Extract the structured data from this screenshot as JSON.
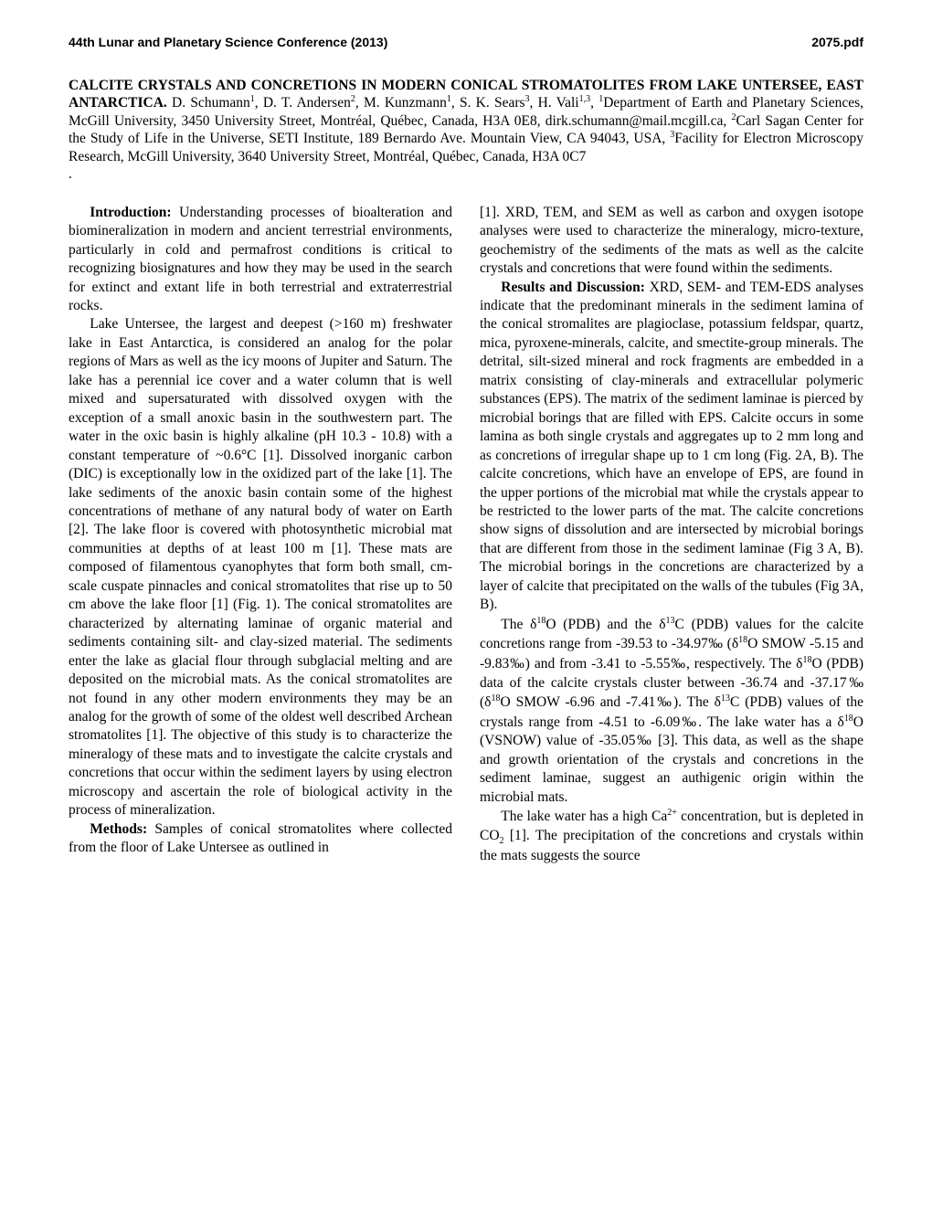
{
  "header": {
    "left": "44th Lunar and Planetary Science Conference (2013)",
    "right": "2075.pdf"
  },
  "title_block": {
    "title": "CALCITE CRYSTALS AND CONCRETIONS IN MODERN CONICAL STROMATOLITES FROM LAKE UNTERSEE, EAST ANTARCTICA.",
    "authors": " D. Schumann",
    "authors2": ", D. T. Andersen",
    "authors3": ", M. Kunzmann",
    "authors4": ", S. K. Sears",
    "authors5": ", H. Vali",
    "affil1": "Department of Earth and Planetary Sciences, McGill University, 3450 University Street, Montréal, Québec, Canada, H3A 0E8, dirk.schumann@mail.mcgill.ca, ",
    "affil2": "Carl Sagan Center for the Study of Life in the Universe, SETI Institute, 189 Bernardo Ave. Mountain View, CA 94043, USA, ",
    "affil3": "Facility for Electron Microscopy Research, McGill University, 3640 University Street, Montréal, Québec, Canada, H3A 0C7",
    "period": "."
  },
  "col1": {
    "intro_head": "Introduction:",
    "intro_text": " Understanding processes of bioalteration and biomineralization in modern and ancient terrestrial environments, particularly in cold and permafrost conditions is critical to recognizing biosignatures and how they may be used in the search for extinct and extant life in both terrestrial and extraterrestrial rocks.",
    "p2": "Lake Untersee, the largest and deepest (>160 m) freshwater lake in East Antarctica, is considered an analog for the polar regions of Mars as well as the icy moons of Jupiter and Saturn. The lake has a perennial ice cover and a water column that is well mixed and supersaturated with dissolved oxygen with the exception of a small anoxic basin in the southwestern part. The water in the oxic basin is highly alkaline (pH 10.3 - 10.8) with a constant temperature of ~0.6°C [1]. Dissolved inorganic carbon (DIC) is exceptionally low in the oxidized part of the lake [1]. The lake sediments of the anoxic basin contain some of the highest concentrations of methane of any natural body of water on Earth [2]. The lake floor is covered with photosynthetic microbial mat communities at depths of at least 100 m [1]. These mats are composed of filamentous cyanophytes that form both small, cm-scale cuspate pinnacles and conical stromatolites that rise up to 50 cm above the lake floor [1] (Fig. 1). The conical stromatolites are characterized by alternating laminae of organic material and sediments containing silt- and clay-sized material. The sediments enter the lake as glacial flour through subglacial melting and are deposited on the microbial mats. As the conical stromatolites are not found in any other modern environments they may be an analog for the growth of some of the oldest well described Archean stromatolites [1]. The objective of this study is to characterize the mineralogy of these mats and to investigate the calcite crystals and concretions that occur within the sediment layers by using electron microscopy and ascertain the role of biological activity in the process of mineralization.",
    "methods_head": "Methods:",
    "methods_text": " Samples of conical stromatolites where collected from the floor of Lake Untersee as outlined in"
  },
  "col2": {
    "p1": "[1]. XRD, TEM, and SEM as well as carbon and oxygen isotope analyses were used to characterize the mineralogy, micro-texture, geochemistry of the sediments of the mats as well as the calcite crystals and concretions that were found within the sediments.",
    "results_head": "Results and Discussion:",
    "results_text": " XRD, SEM- and TEM-EDS analyses indicate that the predominant minerals in the sediment lamina of the conical stromalites are plagioclase, potassium feldspar, quartz, mica, pyroxene-minerals, calcite, and smectite-group minerals. The detrital, silt-sized mineral and rock fragments are embedded in a matrix consisting of clay-minerals and extracellular polymeric substances (EPS). The matrix of the sediment laminae is pierced by microbial borings that are filled with EPS. Calcite occurs in some lamina as both single crystals and aggregates up to 2 mm long and as concretions of irregular shape up to 1 cm long (Fig. 2A, B). The calcite concretions, which have an envelope of EPS, are found in the upper portions of the microbial mat while the crystals appear to be restricted to the lower parts of the mat. The calcite concretions show signs of dissolution and are intersected by microbial borings that are different from those in the sediment laminae (Fig 3 A, B). The microbial borings in the concretions are characterized by a layer of calcite that precipitated on the walls of the tubules (Fig 3A, B).",
    "p3a": "The δ",
    "p3b": "O (PDB) and the δ",
    "p3c": "C (PDB) values for the calcite concretions range from -39.53 to -34.97‰ (δ",
    "p3d": "O SMOW -5.15 and -9.83‰) and from -3.41 to -5.55‰, respectively. The δ",
    "p3e": "O (PDB) data of the calcite crystals cluster between -36.74 and -37.17‰ (δ",
    "p3f": "O SMOW -6.96 and -7.41‰). The δ",
    "p3g": "C (PDB) values of the crystals range from -4.51 to -6.09‰. The lake water has a δ",
    "p3h": "O (VSNOW) value of -35.05‰ [3]. This data, as well as the shape and growth orientation of the crystals and concretions in the sediment laminae, suggest an authigenic origin within the microbial mats.",
    "p4a": "The lake water has a high Ca",
    "p4b": " concentration, but is depleted in CO",
    "p4c": " [1]. The precipitation of the concretions and crystals within the mats suggests the source"
  }
}
